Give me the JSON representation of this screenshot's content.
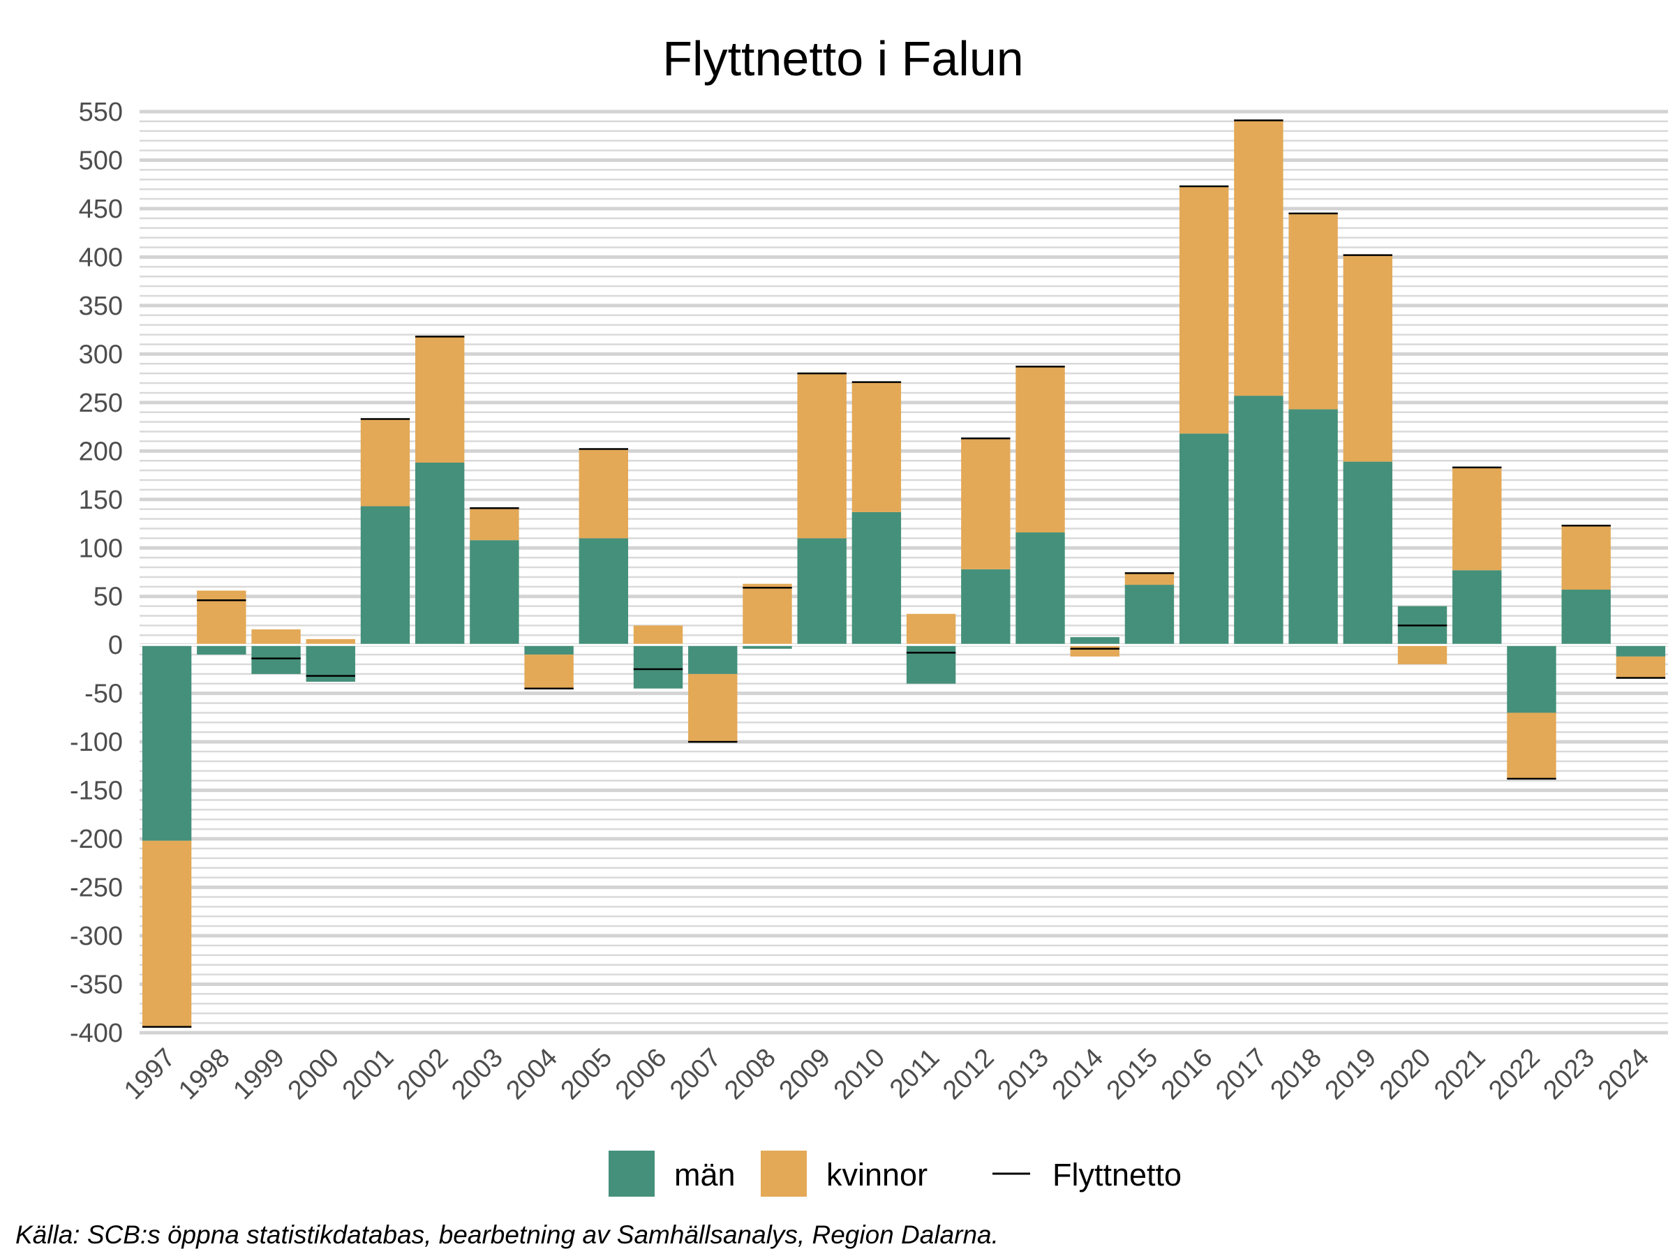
{
  "chart_data": {
    "type": "bar",
    "stacked": true,
    "title": "Flyttnetto i Falun",
    "xlabel": "",
    "ylabel": "",
    "ylim": [
      -400,
      550
    ],
    "yticks": [
      550,
      500,
      450,
      400,
      350,
      300,
      250,
      200,
      150,
      100,
      50,
      0,
      -50,
      -100,
      -150,
      -200,
      -250,
      -300,
      -350,
      -400
    ],
    "grid": true,
    "legend_position": "bottom",
    "categories": [
      "1997",
      "1998",
      "1999",
      "2000",
      "2001",
      "2002",
      "2003",
      "2004",
      "2005",
      "2006",
      "2007",
      "2008",
      "2009",
      "2010",
      "2011",
      "2012",
      "2013",
      "2014",
      "2015",
      "2016",
      "2017",
      "2018",
      "2019",
      "2020",
      "2021",
      "2022",
      "2023",
      "2024"
    ],
    "series": [
      {
        "name": "män",
        "kind": "bar",
        "color": "#45907A",
        "values": [
          -202,
          -10,
          -30,
          -38,
          143,
          188,
          108,
          -10,
          110,
          -45,
          -30,
          -4,
          110,
          137,
          -40,
          78,
          116,
          8,
          62,
          218,
          257,
          243,
          189,
          40,
          77,
          -70,
          57,
          -12
        ]
      },
      {
        "name": "kvinnor",
        "kind": "bar",
        "color": "#E3A957",
        "values": [
          -192,
          56,
          16,
          6,
          90,
          130,
          33,
          -35,
          92,
          20,
          -70,
          63,
          170,
          134,
          32,
          135,
          171,
          -12,
          12,
          255,
          284,
          202,
          213,
          -20,
          106,
          -68,
          66,
          -22
        ]
      },
      {
        "name": "Flyttnetto",
        "kind": "line",
        "color": "#000000",
        "values": [
          -394,
          46,
          -14,
          -32,
          233,
          318,
          141,
          -45,
          202,
          -25,
          -100,
          59,
          280,
          271,
          -8,
          213,
          287,
          -4,
          74,
          473,
          541,
          445,
          402,
          20,
          183,
          -138,
          123,
          -34
        ]
      }
    ]
  },
  "source_note": "Källa: SCB:s öppna statistikdatabas, bearbetning av Samhällsanalys, Region Dalarna."
}
